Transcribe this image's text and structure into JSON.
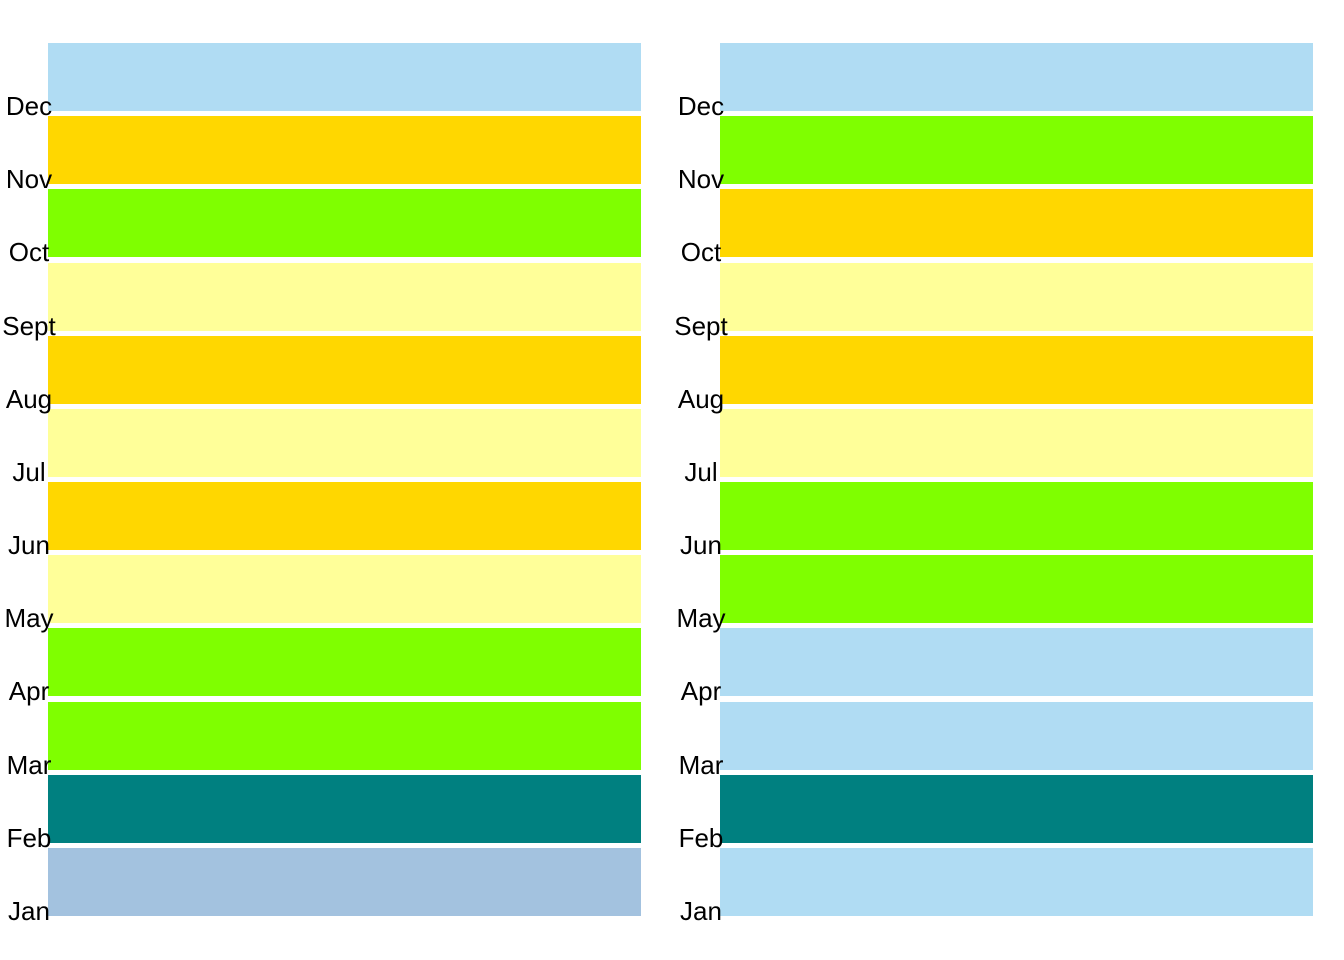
{
  "chart_data": [
    {
      "type": "heatmap",
      "title": "",
      "xlabel": "",
      "ylabel": "",
      "grid": false,
      "legend": "none",
      "categories": [
        "Jan",
        "Feb",
        "Mar",
        "Apr",
        "May",
        "Jun",
        "Jul",
        "Aug",
        "Sept",
        "Oct",
        "Nov",
        "Dec"
      ],
      "colors": [
        "#a3c2df",
        "#008080",
        "#7fff00",
        "#7fff00",
        "#ffff99",
        "#ffd700",
        "#ffff99",
        "#ffd700",
        "#ffff99",
        "#7fff00",
        "#ffd700",
        "#b0dcf3"
      ]
    },
    {
      "type": "heatmap",
      "title": "",
      "xlabel": "",
      "ylabel": "",
      "grid": false,
      "legend": "none",
      "categories": [
        "Jan",
        "Feb",
        "Mar",
        "Apr",
        "May",
        "Jun",
        "Jul",
        "Aug",
        "Sept",
        "Oct",
        "Nov",
        "Dec"
      ],
      "colors": [
        "#b0dcf3",
        "#008080",
        "#b0dcf3",
        "#b0dcf3",
        "#7fff00",
        "#7fff00",
        "#ffff99",
        "#ffd700",
        "#ffff99",
        "#ffd700",
        "#7fff00",
        "#b0dcf3"
      ]
    }
  ]
}
